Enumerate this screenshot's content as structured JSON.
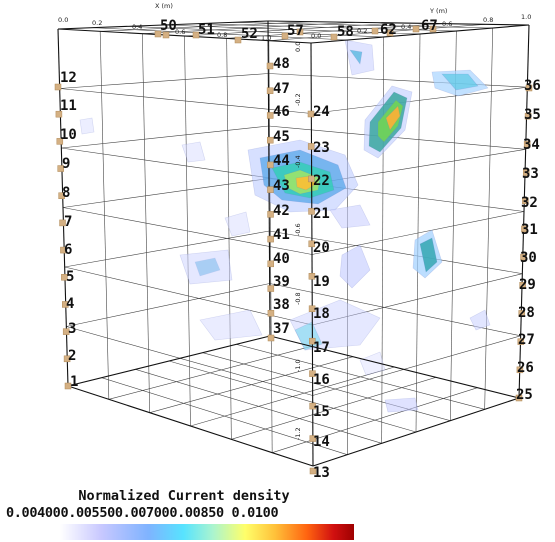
{
  "axes": {
    "x_axis_title": "X (m)",
    "y_axis_title": "Y (m)",
    "x_ticks": [
      "0.0",
      "0.2",
      "0.4",
      "0.6",
      "0.8",
      "1.0"
    ],
    "y_ticks": [
      "0.0",
      "0.2",
      "0.4",
      "0.6",
      "0.8",
      "1.0"
    ],
    "z_ticks": [
      "0.0",
      "-0.2",
      "-0.4",
      "-0.6",
      "-0.8",
      "-1.0",
      "-1.2"
    ]
  },
  "electrodes": {
    "left_face": [
      "12",
      "11",
      "10",
      "9",
      "8",
      "7",
      "6",
      "5",
      "4",
      "3",
      "2",
      "1"
    ],
    "center_edge_a": [
      "24",
      "23",
      "22",
      "21",
      "20",
      "19",
      "18",
      "17",
      "16",
      "15",
      "14",
      "13"
    ],
    "center_edge_b": [
      "48",
      "47",
      "46",
      "45",
      "44",
      "43",
      "42",
      "41",
      "40",
      "39",
      "38",
      "37"
    ],
    "right_face": [
      "36",
      "35",
      "34",
      "33",
      "32",
      "31",
      "30",
      "29",
      "28",
      "27",
      "26",
      "25"
    ],
    "top_face": [
      "50",
      "51",
      "52",
      "57",
      "58",
      "62",
      "67"
    ]
  },
  "legend": {
    "title": "Normalized Current density",
    "ticks": "0.004000.005500.007000.00850 0.0100",
    "colors": [
      "#ffffff",
      "#c8c8ff",
      "#7fb3ff",
      "#57e3ff",
      "#aaf4cf",
      "#ffff6a",
      "#ffc23a",
      "#ff6410",
      "#d11010",
      "#9e0000"
    ]
  }
}
